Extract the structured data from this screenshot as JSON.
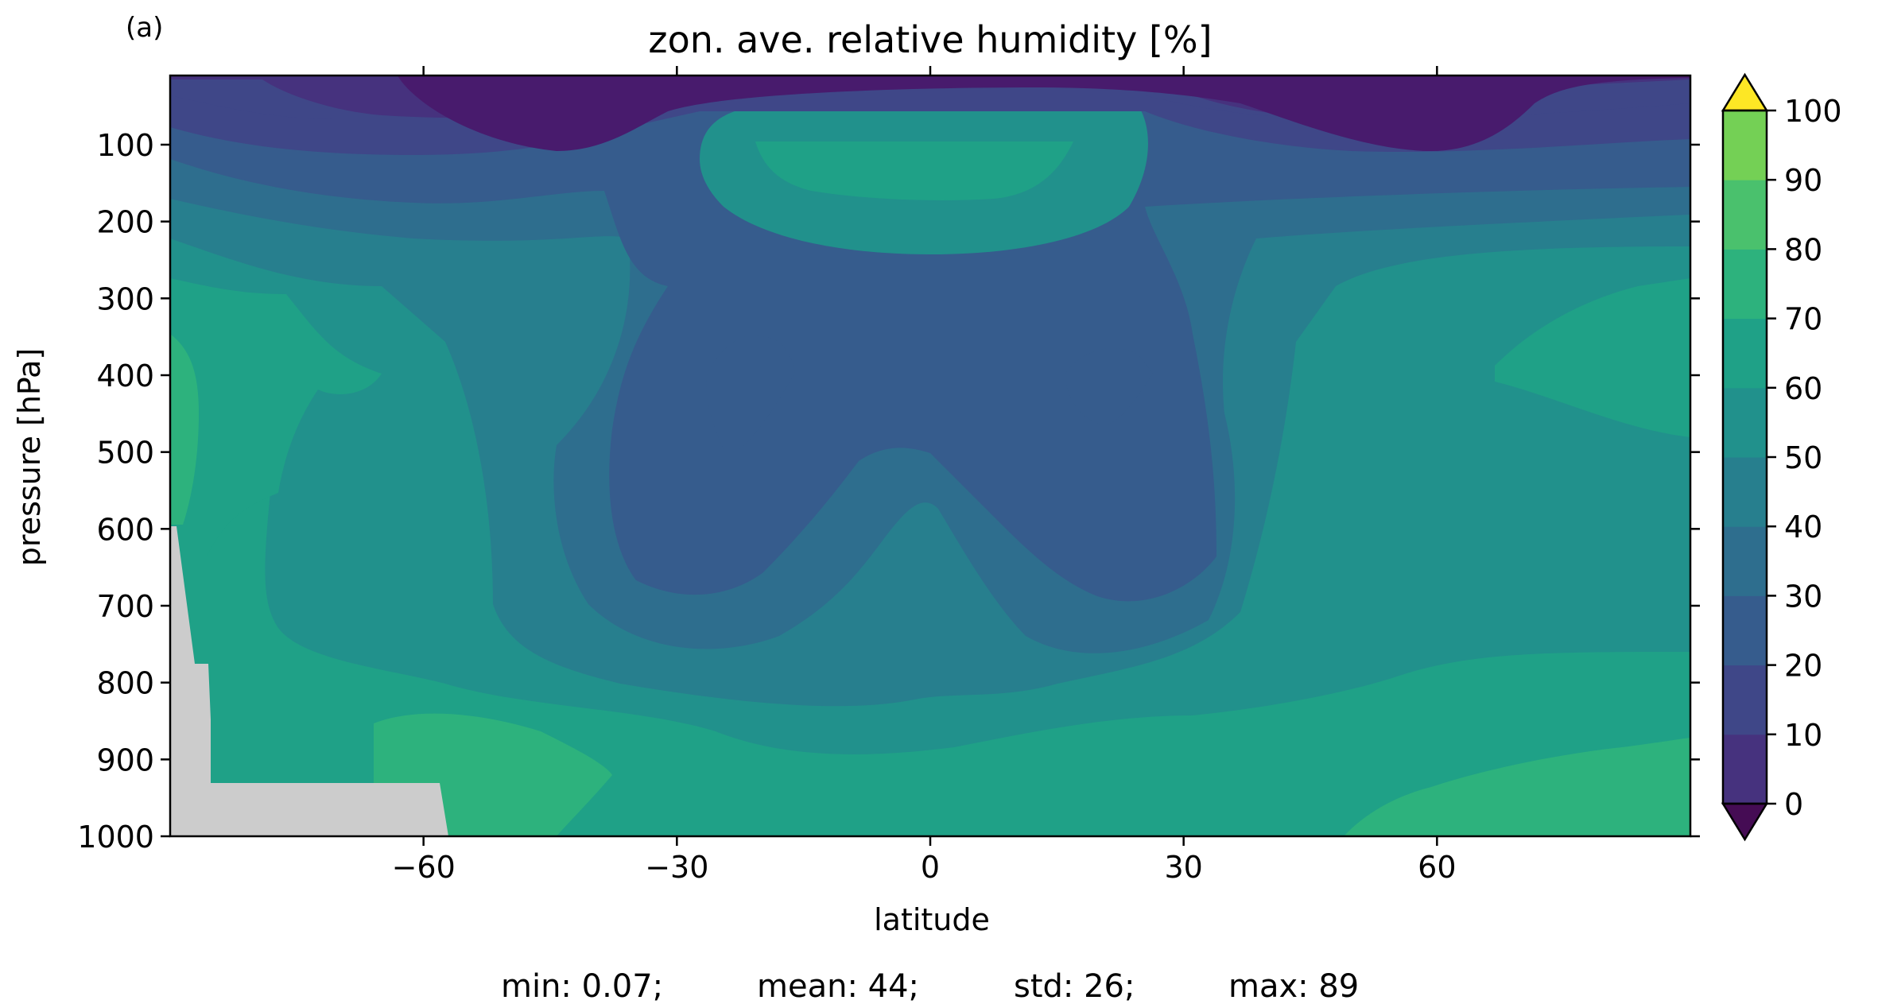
{
  "panel_label": "(a)",
  "stats": {
    "min": "min: 0.07;",
    "mean": "mean: 44;",
    "std": "std: 26;",
    "max": "max: 89"
  },
  "chart_data": {
    "type": "contour",
    "title": "zon. ave. relative humidity [%]",
    "xlabel": "latitude",
    "ylabel": "pressure [hPa]",
    "xlim": [
      -90,
      90
    ],
    "ylim": [
      1000,
      10
    ],
    "y_inverted": true,
    "x_ticks": [
      -60,
      -30,
      0,
      30,
      60
    ],
    "x_tick_labels": [
      "−60",
      "−30",
      "0",
      "30",
      "60"
    ],
    "y_ticks": [
      100,
      200,
      300,
      400,
      500,
      600,
      700,
      800,
      900,
      1000
    ],
    "y_tick_labels": [
      "100",
      "200",
      "300",
      "400",
      "500",
      "600",
      "700",
      "800",
      "900",
      "1000"
    ],
    "colorbar": {
      "levels": [
        0,
        10,
        20,
        30,
        40,
        50,
        60,
        70,
        80,
        90,
        100
      ],
      "tick_labels": [
        "0",
        "10",
        "20",
        "30",
        "40",
        "50",
        "60",
        "70",
        "80",
        "90",
        "100"
      ],
      "extend": "both",
      "colors": [
        "#450c54",
        "#481b6d",
        "#46327e",
        "#3f4788",
        "#365c8d",
        "#2e6e8e",
        "#277f8e",
        "#21918c",
        "#1fa187",
        "#2db27d",
        "#4ac16d",
        "#74d055",
        "#a0da39",
        "#cde11d",
        "#fde725"
      ],
      "colormap": "viridis"
    },
    "missing_color": "#cccccc",
    "field_description": {
      "stratosphere_top_10_60hPa": "0-20 %",
      "tropical_upper_troposphere_100hPa": "70-80 %",
      "subtropical_midlevel_minima_400hPa": "20-30 %",
      "midlatitudes_midlevels": "50-70 %",
      "boundary_layer_900_1000hPa": "70-90 %",
      "high_latitudes_midlevels": "70-80 %"
    }
  }
}
